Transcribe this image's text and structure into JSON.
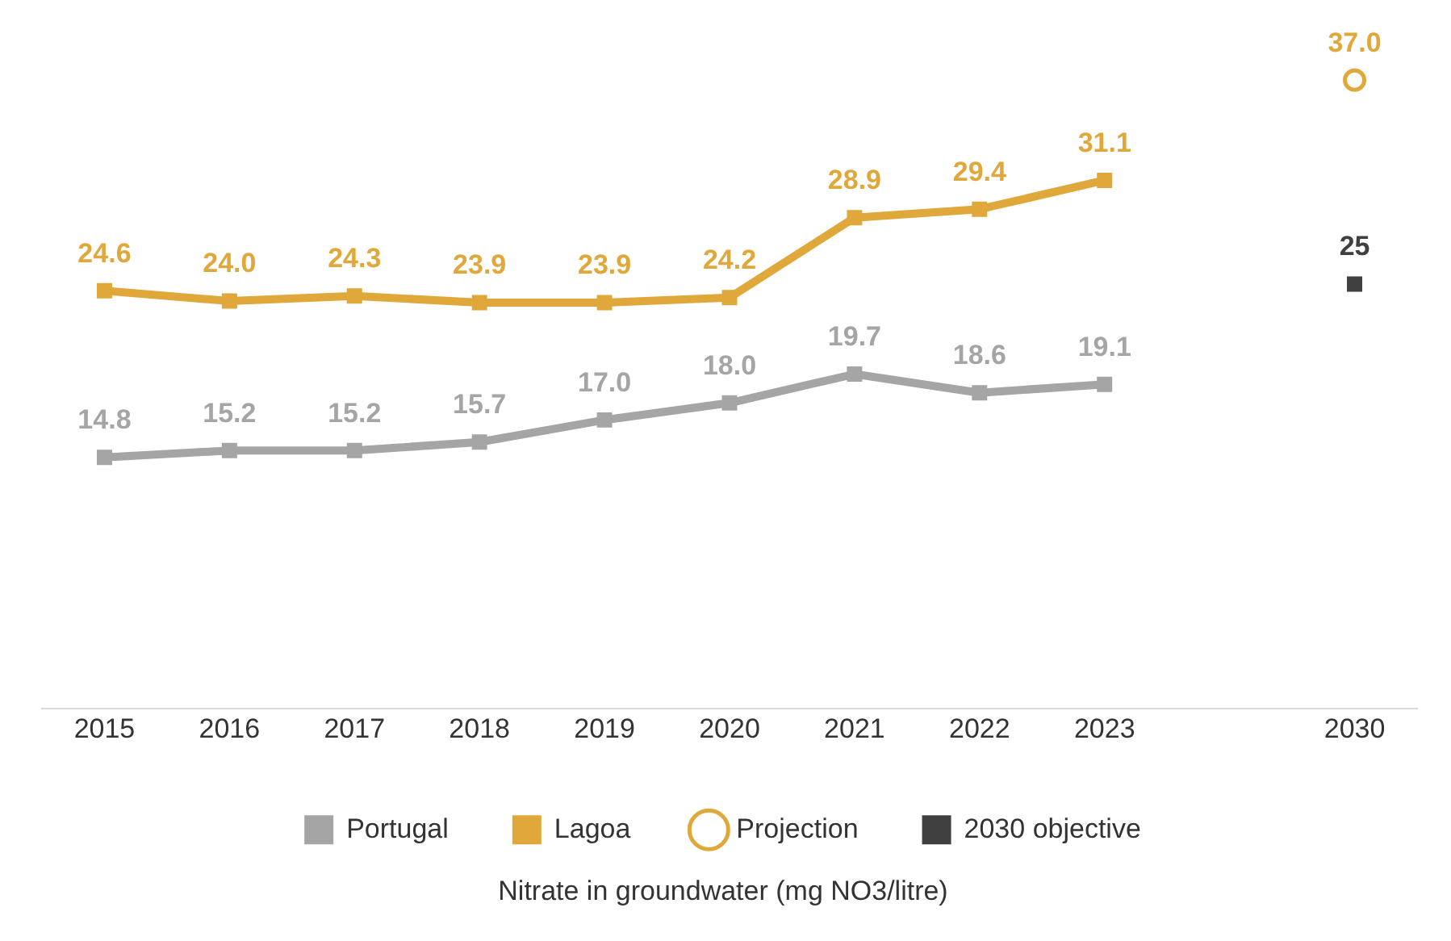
{
  "chart_data": {
    "type": "line",
    "title": "Nitrate in groundwater (mg NO3/litre)",
    "relative": false,
    "categories": [
      "2015",
      "2016",
      "2017",
      "2018",
      "2019",
      "2020",
      "2021",
      "2022",
      "2023",
      null,
      "2030"
    ],
    "series": [
      {
        "name": "Portugal",
        "color": "#a5a5a5",
        "marker": "square",
        "values": [
          14.8,
          15.2,
          15.2,
          15.7,
          17.0,
          18.0,
          19.7,
          18.6,
          19.1,
          null,
          null
        ],
        "value_labels": [
          "14.8",
          "15.2",
          "15.2",
          "15.7",
          "17.0",
          "18.0",
          "19.7",
          "18.6",
          "19.1",
          null,
          null
        ]
      },
      {
        "name": "Lagoa",
        "color": "#e0a83a",
        "marker": "square",
        "values": [
          24.6,
          24.0,
          24.3,
          23.9,
          23.9,
          24.2,
          28.9,
          29.4,
          31.1,
          null,
          null
        ],
        "value_labels": [
          "24.6",
          "24.0",
          "24.3",
          "23.9",
          "23.9",
          "24.2",
          "28.9",
          "29.4",
          "31.1",
          null,
          null
        ]
      },
      {
        "name": "Projection",
        "type": "scatter",
        "color": "#e0a83a",
        "marker": "circle",
        "values": [
          null,
          null,
          null,
          null,
          null,
          null,
          null,
          null,
          null,
          null,
          37.0
        ],
        "value_labels": [
          null,
          null,
          null,
          null,
          null,
          null,
          null,
          null,
          null,
          null,
          "37.0"
        ]
      },
      {
        "name": "2030 objective",
        "type": "scatter",
        "color": "#404040",
        "marker": "square",
        "values": [
          null,
          null,
          null,
          null,
          null,
          null,
          null,
          null,
          null,
          null,
          25
        ],
        "value_labels": [
          null,
          null,
          null,
          null,
          null,
          null,
          null,
          null,
          null,
          null,
          "25"
        ]
      }
    ],
    "legend": "bottom",
    "grid": false
  }
}
